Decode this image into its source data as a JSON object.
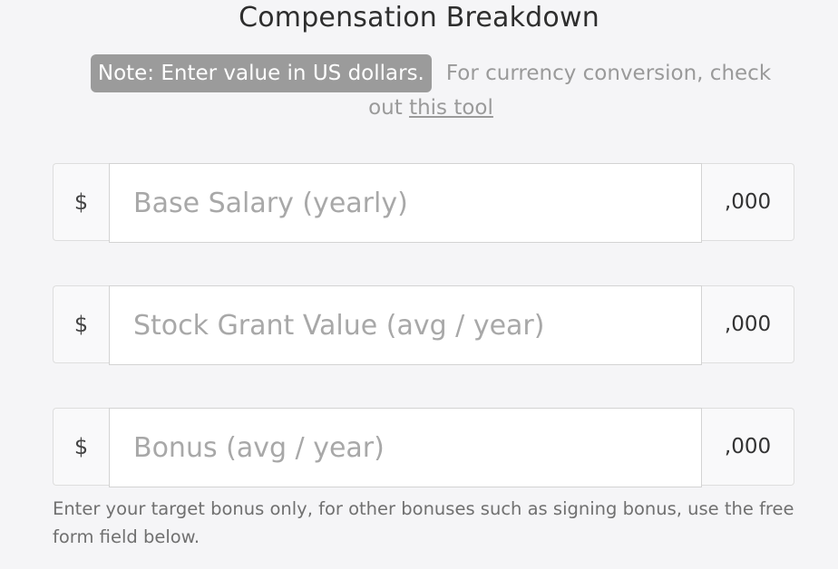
{
  "title": "Compensation Breakdown",
  "note": {
    "badge": "Note: Enter value in US dollars.",
    "text": "For currency conversion, check out",
    "link": "this tool"
  },
  "fields": [
    {
      "prefix": "$",
      "placeholder": "Base Salary (yearly)",
      "suffix": ",000"
    },
    {
      "prefix": "$",
      "placeholder": "Stock Grant Value (avg / year)",
      "suffix": ",000"
    },
    {
      "prefix": "$",
      "placeholder": "Bonus (avg / year)",
      "suffix": ",000"
    }
  ],
  "bonus_help": "Enter your target bonus only, for other bonuses such as signing bonus, use the free form field below."
}
